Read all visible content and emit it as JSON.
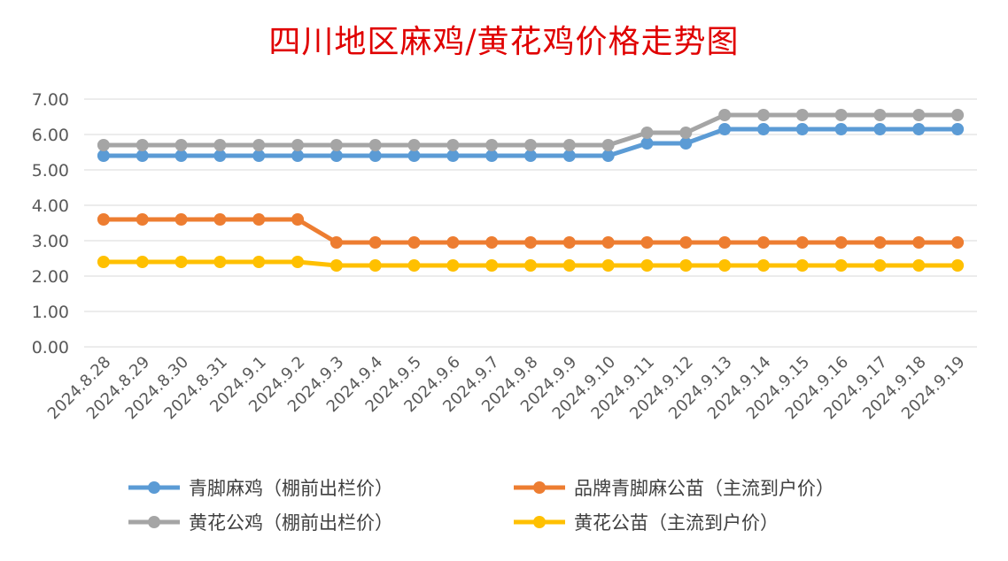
{
  "chart_data": {
    "type": "line",
    "title": "四川地区麻鸡/黄花鸡价格走势图",
    "xlabel": "",
    "ylabel": "",
    "ylim": [
      0,
      7
    ],
    "yticks": [
      "0.00",
      "1.00",
      "2.00",
      "3.00",
      "4.00",
      "5.00",
      "6.00",
      "7.00"
    ],
    "grid": true,
    "legend_position": "bottom",
    "categories": [
      "2024.8.28",
      "2024.8.29",
      "2024.8.30",
      "2024.8.31",
      "2024.9.1",
      "2024.9.2",
      "2024.9.3",
      "2024.9.4",
      "2024.9.5",
      "2024.9.6",
      "2024.9.7",
      "2024.9.8",
      "2024.9.9",
      "2024.9.10",
      "2024.9.11",
      "2024.9.12",
      "2024.9.13",
      "2024.9.14",
      "2024.9.15",
      "2024.9.16",
      "2024.9.17",
      "2024.9.18",
      "2024.9.19"
    ],
    "series": [
      {
        "name": "青脚麻鸡（棚前出栏价）",
        "color": "#5b9bd5",
        "values": [
          5.4,
          5.4,
          5.4,
          5.4,
          5.4,
          5.4,
          5.4,
          5.4,
          5.4,
          5.4,
          5.4,
          5.4,
          5.4,
          5.4,
          5.75,
          5.75,
          6.15,
          6.15,
          6.15,
          6.15,
          6.15,
          6.15,
          6.15
        ]
      },
      {
        "name": "品牌青脚麻公苗（主流到户价）",
        "color": "#ed7d31",
        "values": [
          3.6,
          3.6,
          3.6,
          3.6,
          3.6,
          3.6,
          2.95,
          2.95,
          2.95,
          2.95,
          2.95,
          2.95,
          2.95,
          2.95,
          2.95,
          2.95,
          2.95,
          2.95,
          2.95,
          2.95,
          2.95,
          2.95,
          2.95
        ]
      },
      {
        "name": "黄花公鸡（棚前出栏价）",
        "color": "#a5a5a5",
        "values": [
          5.7,
          5.7,
          5.7,
          5.7,
          5.7,
          5.7,
          5.7,
          5.7,
          5.7,
          5.7,
          5.7,
          5.7,
          5.7,
          5.7,
          6.05,
          6.05,
          6.55,
          6.55,
          6.55,
          6.55,
          6.55,
          6.55,
          6.55
        ]
      },
      {
        "name": "黄花公苗（主流到户价）",
        "color": "#ffc000",
        "values": [
          2.4,
          2.4,
          2.4,
          2.4,
          2.4,
          2.4,
          2.3,
          2.3,
          2.3,
          2.3,
          2.3,
          2.3,
          2.3,
          2.3,
          2.3,
          2.3,
          2.3,
          2.3,
          2.3,
          2.3,
          2.3,
          2.3,
          2.3
        ]
      }
    ]
  }
}
